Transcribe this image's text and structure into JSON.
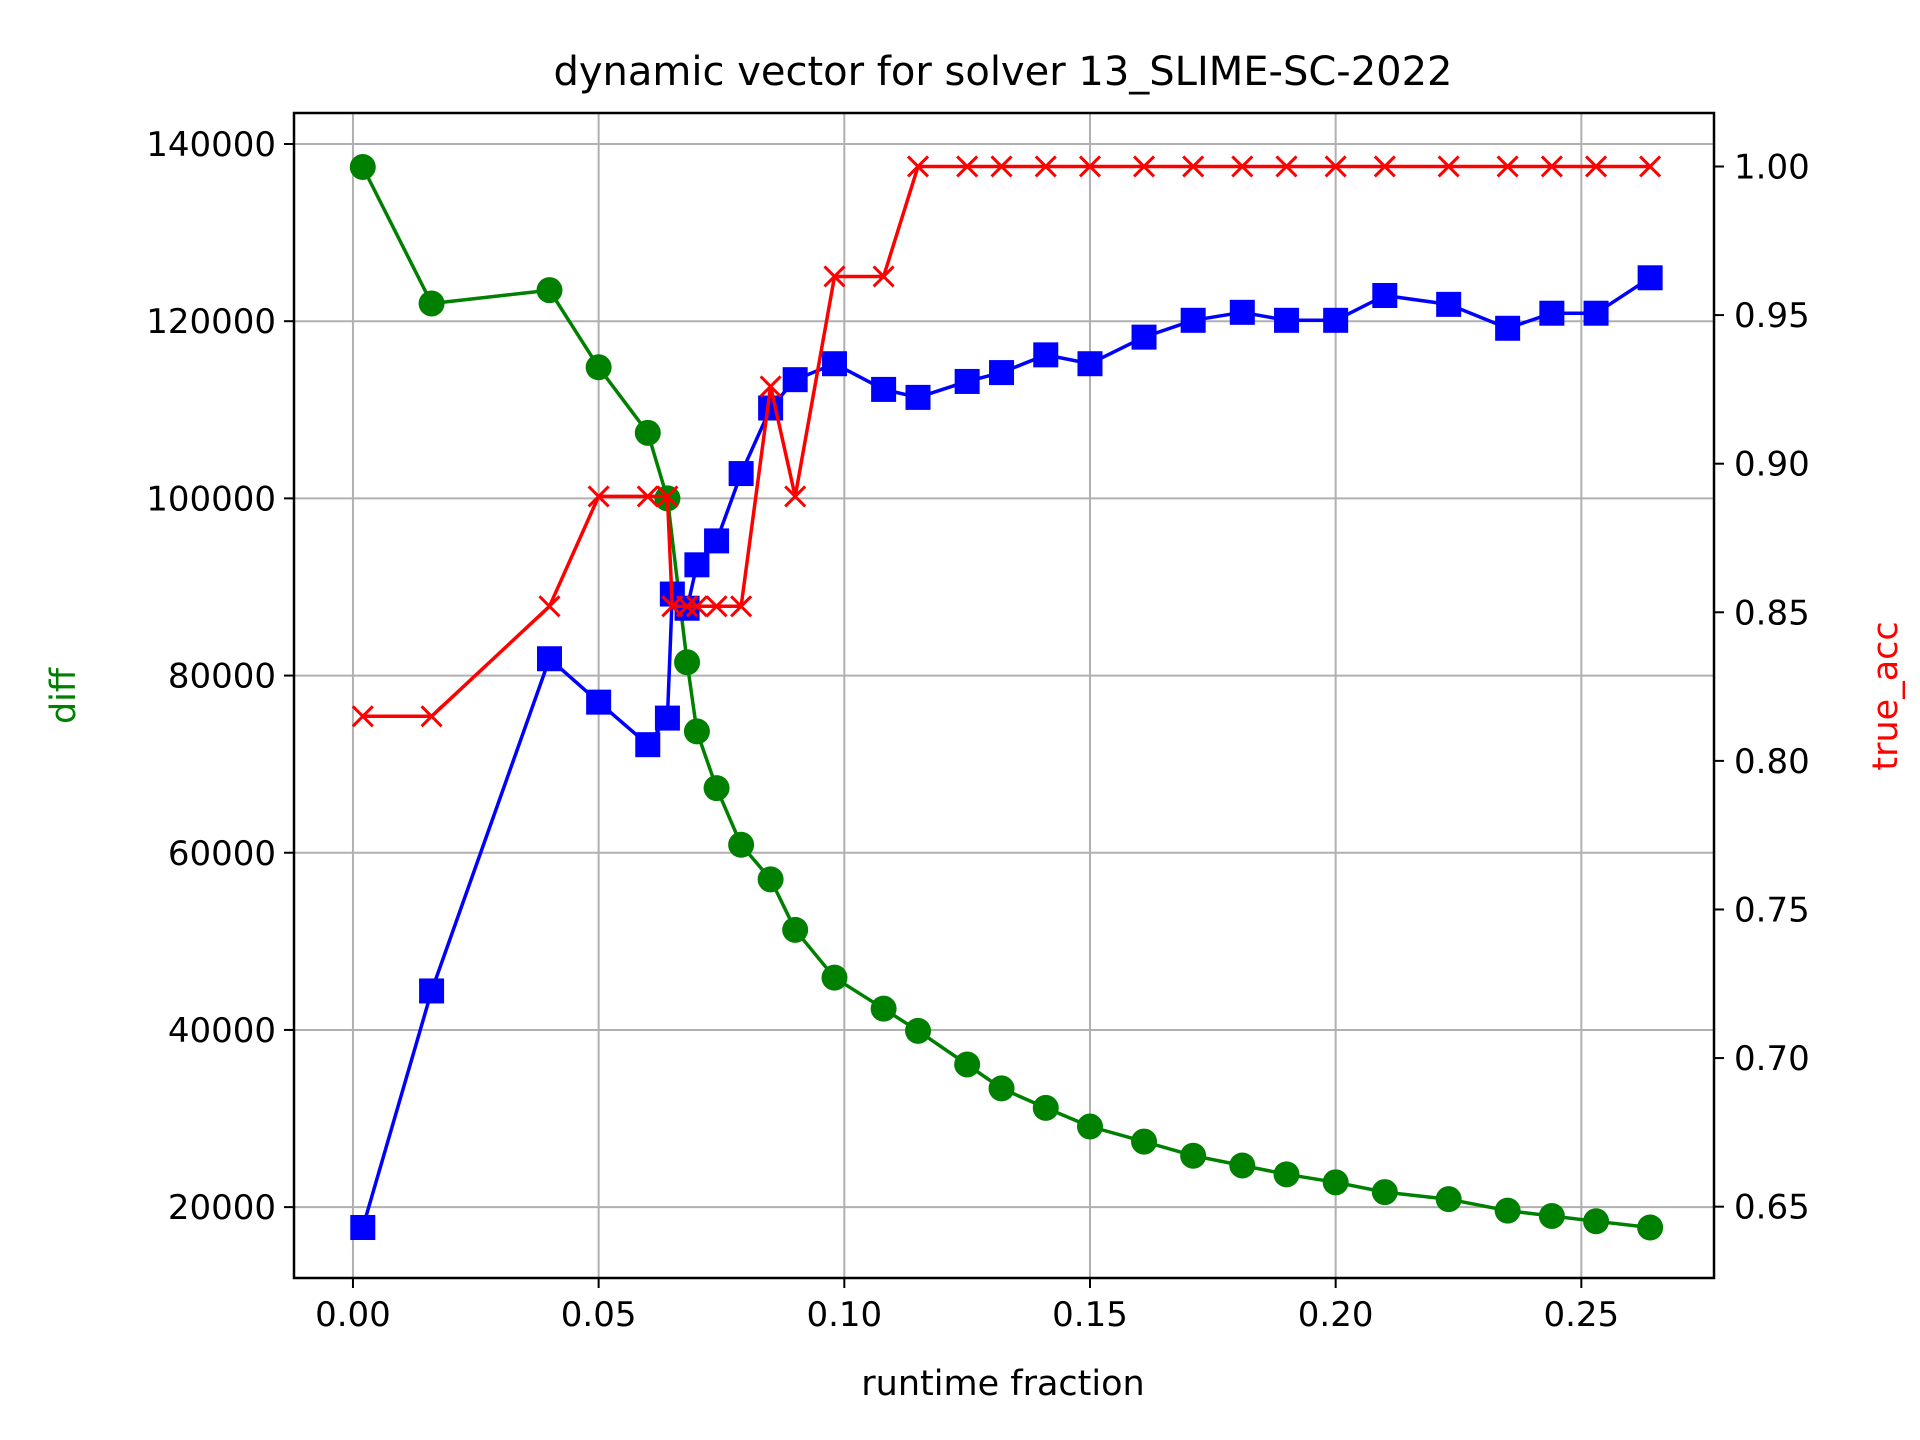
{
  "chart_data": {
    "type": "line",
    "title": "dynamic vector for solver 13_SLIME-SC-2022",
    "xlabel": "runtime fraction",
    "ylabel_left": "diff",
    "ylabel_right": "true_acc",
    "xlim": [
      -0.012,
      0.277
    ],
    "ylim_left": [
      12000,
      143500
    ],
    "ylim_right": [
      0.626,
      1.018
    ],
    "grid": true,
    "x_ticks": [
      "0.00",
      "0.05",
      "0.10",
      "0.15",
      "0.20",
      "0.25"
    ],
    "y_left_ticks": [
      "20000",
      "40000",
      "60000",
      "80000",
      "100000",
      "120000",
      "140000"
    ],
    "y_right_ticks": [
      "0.65",
      "0.70",
      "0.75",
      "0.80",
      "0.85",
      "0.90",
      "0.95",
      "1.00"
    ],
    "colors": {
      "diff": "#008000",
      "blue": "#0000ff",
      "true_acc": "#ff0000"
    },
    "series": [
      {
        "axis": "left",
        "color": "#008000",
        "marker": "circle",
        "x": [
          0.002,
          0.016,
          0.04,
          0.05,
          0.06,
          0.064,
          0.068,
          0.07,
          0.074,
          0.079,
          0.085,
          0.09,
          0.098,
          0.108,
          0.115,
          0.125,
          0.132,
          0.141,
          0.15,
          0.161,
          0.171,
          0.181,
          0.19,
          0.2,
          0.21,
          0.223,
          0.235,
          0.244,
          0.253,
          0.264
        ],
        "y": [
          137400,
          122000,
          123500,
          114800,
          107400,
          100000,
          81500,
          73700,
          67300,
          60900,
          57000,
          51300,
          45900,
          42400,
          39900,
          36100,
          33400,
          31200,
          29100,
          27400,
          25800,
          24700,
          23700,
          22800,
          21700,
          20900,
          19600,
          19000,
          18400,
          17700
        ]
      },
      {
        "axis": "left",
        "color": "#0000ff",
        "marker": "square",
        "x": [
          0.002,
          0.016,
          0.04,
          0.05,
          0.06,
          0.064,
          0.065,
          0.068,
          0.07,
          0.074,
          0.079,
          0.085,
          0.09,
          0.098,
          0.108,
          0.115,
          0.125,
          0.132,
          0.141,
          0.15,
          0.161,
          0.171,
          0.181,
          0.19,
          0.2,
          0.21,
          0.223,
          0.235,
          0.244,
          0.253,
          0.264
        ],
        "y": [
          17700,
          44400,
          81900,
          77000,
          72200,
          75200,
          89200,
          87600,
          92500,
          95200,
          102800,
          110200,
          113400,
          115200,
          112300,
          111400,
          113200,
          114200,
          116200,
          115200,
          118200,
          120100,
          121000,
          120100,
          120100,
          122900,
          121900,
          119200,
          120900,
          120900,
          124900
        ]
      },
      {
        "axis": "right",
        "color": "#ff0000",
        "marker": "x",
        "x": [
          0.002,
          0.016,
          0.04,
          0.05,
          0.06,
          0.064,
          0.065,
          0.068,
          0.07,
          0.074,
          0.079,
          0.085,
          0.09,
          0.098,
          0.108,
          0.115,
          0.125,
          0.132,
          0.141,
          0.15,
          0.161,
          0.171,
          0.181,
          0.19,
          0.2,
          0.21,
          0.223,
          0.235,
          0.244,
          0.253,
          0.264
        ],
        "y": [
          0.815,
          0.815,
          0.852,
          0.889,
          0.889,
          0.889,
          0.852,
          0.852,
          0.852,
          0.852,
          0.852,
          0.926,
          0.889,
          0.963,
          0.963,
          1.0,
          1.0,
          1.0,
          1.0,
          1.0,
          1.0,
          1.0,
          1.0,
          1.0,
          1.0,
          1.0,
          1.0,
          1.0,
          1.0,
          1.0,
          1.0
        ]
      }
    ]
  }
}
